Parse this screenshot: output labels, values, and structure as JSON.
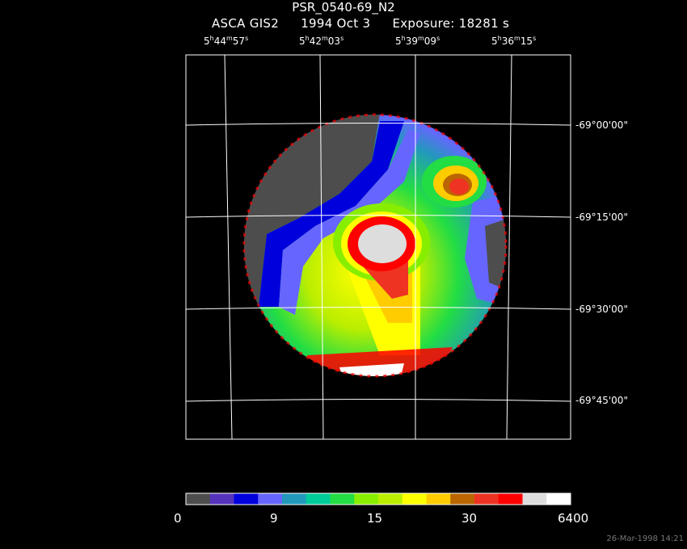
{
  "header": {
    "title": "PSR_0540-69_N2",
    "instrument": "ASCA GIS2",
    "date": "1994 Oct  3",
    "exposure": "Exposure: 18281 s"
  },
  "axes": {
    "ra_labels": [
      {
        "h": "5",
        "m": "44",
        "s": "57"
      },
      {
        "h": "5",
        "m": "42",
        "s": "03"
      },
      {
        "h": "5",
        "m": "39",
        "s": "09"
      },
      {
        "h": "5",
        "m": "36",
        "s": "15"
      }
    ],
    "dec_labels": [
      "-69°00'00\"",
      "-69°15'00\"",
      "-69°30'00\"",
      "-69°45'00\""
    ]
  },
  "colorbar": {
    "colors": [
      "#4d4d4d",
      "#5533bb",
      "#0000dd",
      "#6666ff",
      "#2299bb",
      "#00cc99",
      "#22dd44",
      "#88ee00",
      "#bbee00",
      "#ffff00",
      "#ffcc00",
      "#bb6600",
      "#ee3322",
      "#ff0000",
      "#dddddd",
      "#ffffff"
    ],
    "labels": [
      "0",
      "9",
      "15",
      "30",
      "6400"
    ]
  },
  "footer": {
    "timestamp": "26-Mar-1998 14:21"
  }
}
